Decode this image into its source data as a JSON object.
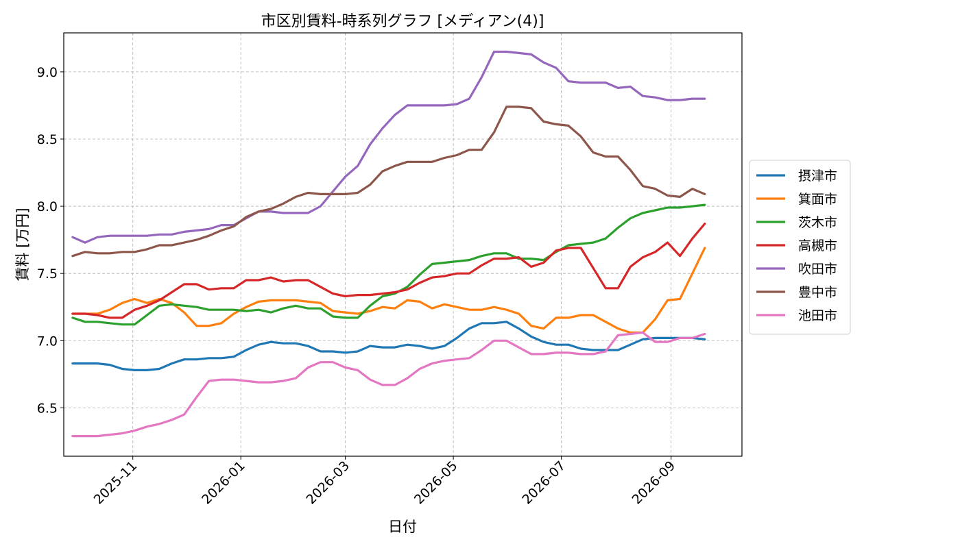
{
  "chart_data": {
    "type": "line",
    "title": "市区別賃料-時系列グラフ [メディアン(4)]",
    "xlabel": "日付",
    "ylabel": "賃料 [万円]",
    "xlim": [
      "2025-09-23",
      "2026-10-11"
    ],
    "ylim": [
      6.14,
      9.29
    ],
    "yticks": [
      6.5,
      7.0,
      7.5,
      8.0,
      8.5,
      9.0
    ],
    "ytick_labels": [
      "6.5",
      "7.0",
      "7.5",
      "8.0",
      "8.5",
      "9.0"
    ],
    "xticks": [
      "2025-11-01",
      "2026-01-01",
      "2026-03-01",
      "2026-05-01",
      "2026-07-01",
      "2026-09-01"
    ],
    "xtick_labels": [
      "2025-11",
      "2026-01",
      "2026-03",
      "2026-05",
      "2026-07",
      "2026-09"
    ],
    "grid": true,
    "legend_position": "right",
    "x": [
      "2025-09-28",
      "2025-10-05",
      "2025-10-12",
      "2025-10-19",
      "2025-10-26",
      "2025-11-02",
      "2025-11-09",
      "2025-11-16",
      "2025-11-23",
      "2025-11-30",
      "2025-12-07",
      "2025-12-14",
      "2025-12-21",
      "2025-12-28",
      "2026-01-04",
      "2026-01-11",
      "2026-01-18",
      "2026-01-25",
      "2026-02-01",
      "2026-02-08",
      "2026-02-15",
      "2026-02-22",
      "2026-03-01",
      "2026-03-08",
      "2026-03-15",
      "2026-03-22",
      "2026-03-29",
      "2026-04-05",
      "2026-04-12",
      "2026-04-19",
      "2026-04-26",
      "2026-05-03",
      "2026-05-10",
      "2026-05-17",
      "2026-05-24",
      "2026-05-31",
      "2026-06-07",
      "2026-06-14",
      "2026-06-21",
      "2026-06-28",
      "2026-07-05",
      "2026-07-12",
      "2026-07-19",
      "2026-07-26",
      "2026-08-02",
      "2026-08-09",
      "2026-08-16",
      "2026-08-23",
      "2026-08-30",
      "2026-09-06",
      "2026-09-13",
      "2026-09-20"
    ],
    "series": [
      {
        "name": "摂津市",
        "color": "#1f77b4",
        "values": [
          6.83,
          6.83,
          6.83,
          6.82,
          6.79,
          6.78,
          6.78,
          6.79,
          6.83,
          6.86,
          6.86,
          6.87,
          6.87,
          6.88,
          6.93,
          6.97,
          6.99,
          6.98,
          6.98,
          6.96,
          6.92,
          6.92,
          6.91,
          6.92,
          6.96,
          6.95,
          6.95,
          6.97,
          6.96,
          6.94,
          6.96,
          7.02,
          7.09,
          7.13,
          7.13,
          7.14,
          7.09,
          7.03,
          6.99,
          6.97,
          6.97,
          6.94,
          6.93,
          6.93,
          6.93,
          6.97,
          7.01,
          7.02,
          7.02,
          7.02,
          7.02,
          7.01
        ]
      },
      {
        "name": "箕面市",
        "color": "#ff7f0e",
        "values": [
          7.2,
          7.2,
          7.2,
          7.23,
          7.28,
          7.31,
          7.28,
          7.31,
          7.28,
          7.21,
          7.11,
          7.11,
          7.13,
          7.2,
          7.25,
          7.29,
          7.3,
          7.3,
          7.3,
          7.29,
          7.28,
          7.22,
          7.21,
          7.2,
          7.22,
          7.25,
          7.24,
          7.3,
          7.29,
          7.24,
          7.27,
          7.25,
          7.23,
          7.23,
          7.25,
          7.23,
          7.2,
          7.11,
          7.09,
          7.17,
          7.17,
          7.19,
          7.19,
          7.14,
          7.09,
          7.06,
          7.06,
          7.16,
          7.3,
          7.31,
          7.5,
          7.69
        ]
      },
      {
        "name": "茨木市",
        "color": "#2ca02c",
        "values": [
          7.17,
          7.14,
          7.14,
          7.13,
          7.12,
          7.12,
          7.19,
          7.26,
          7.27,
          7.26,
          7.25,
          7.23,
          7.23,
          7.23,
          7.22,
          7.23,
          7.21,
          7.24,
          7.26,
          7.24,
          7.24,
          7.18,
          7.17,
          7.17,
          7.26,
          7.33,
          7.35,
          7.4,
          7.49,
          7.57,
          7.58,
          7.59,
          7.6,
          7.63,
          7.65,
          7.65,
          7.61,
          7.61,
          7.6,
          7.66,
          7.71,
          7.72,
          7.73,
          7.76,
          7.84,
          7.91,
          7.95,
          7.97,
          7.99,
          7.99,
          8.0,
          8.01
        ]
      },
      {
        "name": "高槻市",
        "color": "#d62728",
        "values": [
          7.2,
          7.2,
          7.19,
          7.17,
          7.17,
          7.23,
          7.26,
          7.3,
          7.36,
          7.42,
          7.42,
          7.38,
          7.39,
          7.39,
          7.45,
          7.45,
          7.47,
          7.44,
          7.45,
          7.45,
          7.4,
          7.35,
          7.33,
          7.34,
          7.34,
          7.35,
          7.36,
          7.38,
          7.43,
          7.47,
          7.48,
          7.5,
          7.5,
          7.56,
          7.61,
          7.61,
          7.62,
          7.55,
          7.58,
          7.67,
          7.69,
          7.69,
          7.54,
          7.39,
          7.39,
          7.55,
          7.62,
          7.66,
          7.73,
          7.63,
          7.76,
          7.87
        ]
      },
      {
        "name": "吹田市",
        "color": "#9467bd",
        "values": [
          7.77,
          7.73,
          7.77,
          7.78,
          7.78,
          7.78,
          7.78,
          7.79,
          7.79,
          7.81,
          7.82,
          7.83,
          7.86,
          7.86,
          7.91,
          7.96,
          7.96,
          7.95,
          7.95,
          7.95,
          8.0,
          8.11,
          8.22,
          8.3,
          8.46,
          8.58,
          8.68,
          8.75,
          8.75,
          8.75,
          8.75,
          8.76,
          8.8,
          8.96,
          9.15,
          9.15,
          9.14,
          9.13,
          9.07,
          9.03,
          8.93,
          8.92,
          8.92,
          8.92,
          8.88,
          8.89,
          8.82,
          8.81,
          8.79,
          8.79,
          8.8,
          8.8
        ]
      },
      {
        "name": "豊中市",
        "color": "#8c564b",
        "values": [
          7.63,
          7.66,
          7.65,
          7.65,
          7.66,
          7.66,
          7.68,
          7.71,
          7.71,
          7.73,
          7.75,
          7.78,
          7.82,
          7.85,
          7.92,
          7.96,
          7.98,
          8.02,
          8.07,
          8.1,
          8.09,
          8.09,
          8.09,
          8.1,
          8.16,
          8.26,
          8.3,
          8.33,
          8.33,
          8.33,
          8.36,
          8.38,
          8.42,
          8.42,
          8.55,
          8.74,
          8.74,
          8.73,
          8.63,
          8.61,
          8.6,
          8.52,
          8.4,
          8.37,
          8.37,
          8.27,
          8.15,
          8.13,
          8.08,
          8.07,
          8.13,
          8.09
        ]
      },
      {
        "name": "池田市",
        "color": "#e377c2",
        "values": [
          6.29,
          6.29,
          6.29,
          6.3,
          6.31,
          6.33,
          6.36,
          6.38,
          6.41,
          6.45,
          6.58,
          6.7,
          6.71,
          6.71,
          6.7,
          6.69,
          6.69,
          6.7,
          6.72,
          6.8,
          6.84,
          6.84,
          6.8,
          6.78,
          6.71,
          6.67,
          6.67,
          6.72,
          6.79,
          6.83,
          6.85,
          6.86,
          6.87,
          6.93,
          7.0,
          7.0,
          6.95,
          6.9,
          6.9,
          6.91,
          6.91,
          6.9,
          6.9,
          6.92,
          7.04,
          7.05,
          7.06,
          6.99,
          6.99,
          7.02,
          7.02,
          7.05
        ]
      }
    ]
  }
}
